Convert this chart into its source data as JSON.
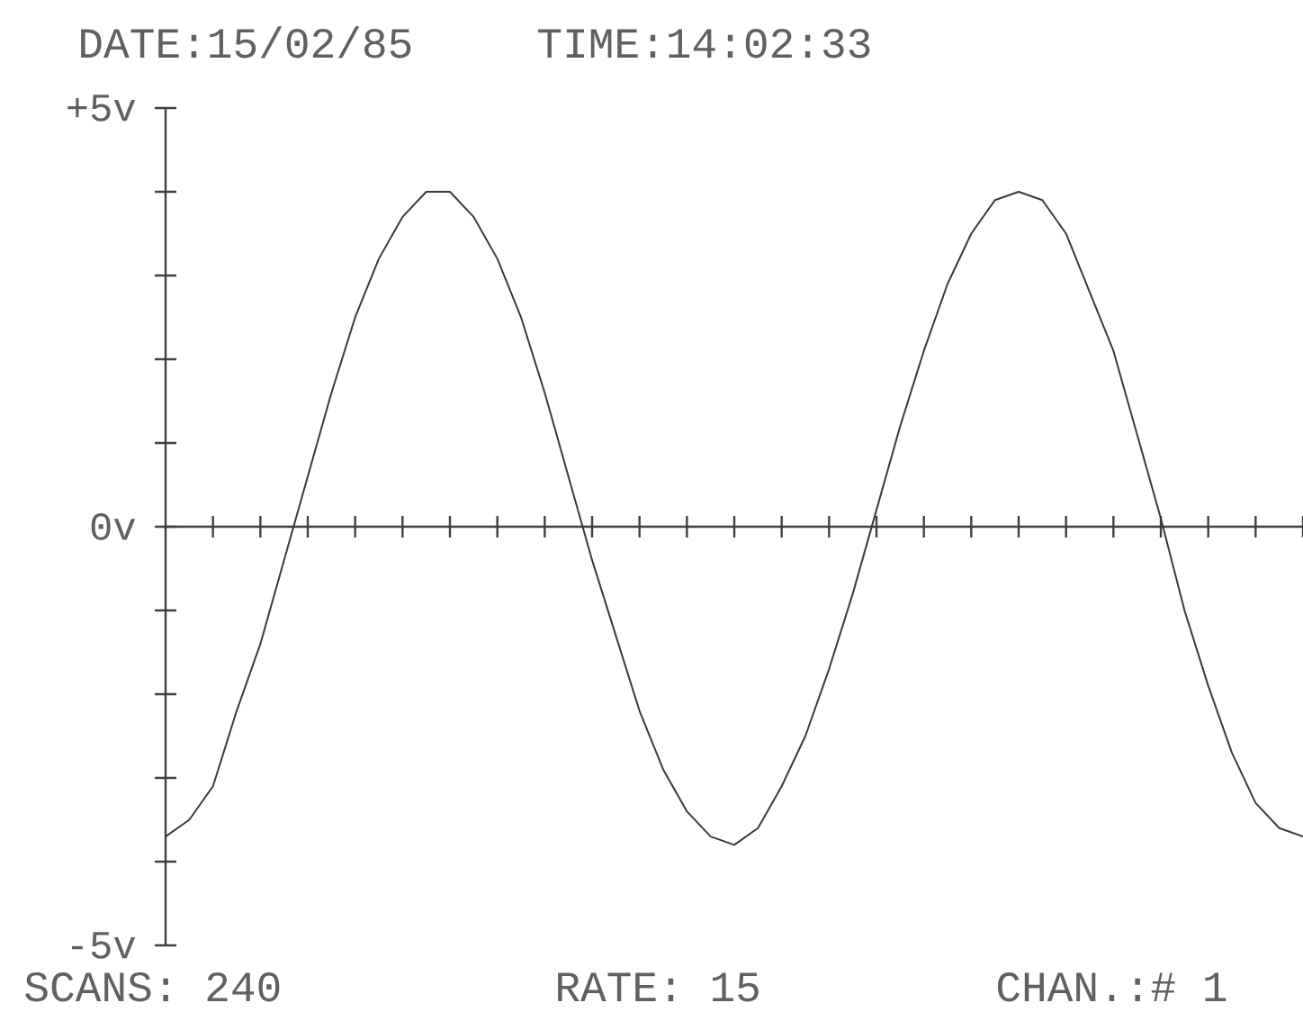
{
  "chart_data": {
    "type": "line",
    "title": "DATE:15/02/85",
    "subtitle": "TIME:14:02:33",
    "annotations": [
      "SCANS: 240",
      "RATE: 15",
      "CHAN.:# 1"
    ],
    "categories": [
      null,
      null,
      null,
      null,
      null,
      null,
      null,
      null,
      null,
      null,
      null,
      null,
      null,
      null,
      null,
      null,
      null,
      null,
      null,
      null,
      null,
      null,
      null,
      null,
      null,
      null,
      null,
      null,
      null,
      null,
      null,
      null,
      null,
      null,
      null,
      null,
      null,
      null,
      null,
      null,
      null,
      null,
      null,
      null,
      null,
      null,
      null,
      null,
      null
    ],
    "series": [
      {
        "color": "#3a3a3a",
        "values": [
          -3.7,
          -3.5,
          -3.1,
          -2.2,
          -1.4,
          -0.4,
          0.6,
          1.6,
          2.5,
          3.2,
          3.7,
          4.0,
          4.0,
          3.7,
          3.2,
          2.5,
          1.6,
          0.6,
          -0.4,
          -1.3,
          -2.2,
          -2.9,
          -3.4,
          -3.7,
          -3.8,
          -3.6,
          -3.1,
          -2.5,
          -1.7,
          -0.8,
          0.2,
          1.2,
          2.1,
          2.9,
          3.5,
          3.9,
          4.0,
          3.9,
          3.5,
          2.8,
          2.1,
          1.1,
          0.1,
          -1.0,
          -1.9,
          -2.7,
          -3.3,
          -3.6,
          -3.7
        ]
      }
    ],
    "ylim": [
      -5,
      5
    ],
    "yticks": [
      {
        "value": -5,
        "label": "-5v"
      },
      {
        "value": -4,
        "label": null
      },
      {
        "value": -3,
        "label": null
      },
      {
        "value": -2,
        "label": null
      },
      {
        "value": -1,
        "label": null
      },
      {
        "value": 0,
        "label": "0v"
      },
      {
        "value": 1,
        "label": null
      },
      {
        "value": 2,
        "label": null
      },
      {
        "value": 3,
        "label": null
      },
      {
        "value": 4,
        "label": null
      },
      {
        "value": 5,
        "label": "+5v"
      }
    ],
    "tick_labels": "y"
  }
}
